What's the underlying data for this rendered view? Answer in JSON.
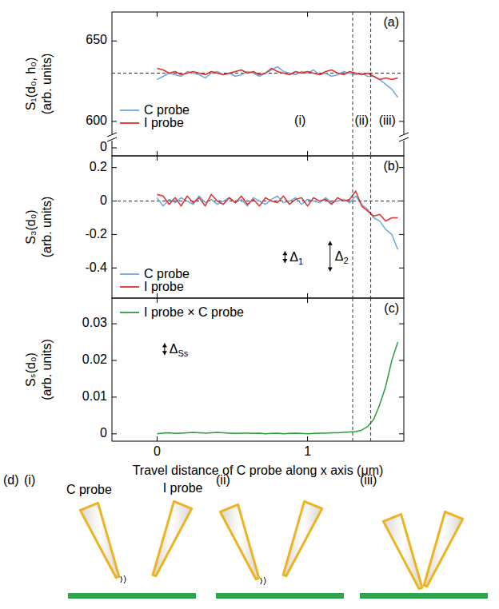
{
  "chart_data": [
    {
      "type": "line",
      "panel_label": "(a)",
      "ylabel": [
        "S₁(d₀, h₀)",
        "(arb. units)"
      ],
      "x": [
        0,
        0.04,
        0.08,
        0.12,
        0.16,
        0.2,
        0.24,
        0.28,
        0.32,
        0.36,
        0.4,
        0.44,
        0.48,
        0.52,
        0.56,
        0.6,
        0.64,
        0.68,
        0.72,
        0.76,
        0.8,
        0.84,
        0.88,
        0.92,
        0.96,
        1,
        1.04,
        1.08,
        1.12,
        1.16,
        1.2,
        1.24,
        1.28,
        1.32,
        1.36,
        1.4,
        1.44,
        1.48,
        1.52,
        1.56,
        1.6
      ],
      "xlim": [
        -0.3,
        1.64
      ],
      "xticks": [
        0,
        1
      ],
      "ylim": [
        592,
        668
      ],
      "yticks": [
        600,
        650
      ],
      "ybreak_ticks": [
        0
      ],
      "tick_labels": "y",
      "reference_y": 630,
      "region_bounds": [
        1.3,
        1.42
      ],
      "regions": [
        {
          "label": "(i)",
          "x": 0.95
        },
        {
          "label": "(ii)",
          "x": 1.36
        },
        {
          "label": "(iii)",
          "x": 1.53
        }
      ],
      "legend": "lower left",
      "series": [
        {
          "name": "C probe",
          "color": "#6fa8dc",
          "values": [
            626,
            628,
            630,
            629,
            628,
            631,
            630,
            629,
            627,
            630,
            631,
            629,
            630,
            628,
            629,
            631,
            630,
            628,
            630,
            632,
            634,
            631,
            630,
            629,
            631,
            630,
            632,
            629,
            630,
            628,
            629,
            631,
            630,
            629,
            630,
            628,
            628,
            626,
            623,
            620,
            615
          ]
        },
        {
          "name": "I probe",
          "color": "#e0302a",
          "values": [
            633,
            632,
            630,
            631,
            629,
            630,
            631,
            630,
            629,
            631,
            630,
            629,
            630,
            631,
            632,
            630,
            631,
            629,
            630,
            633,
            631,
            630,
            629,
            631,
            630,
            631,
            630,
            629,
            631,
            632,
            630,
            629,
            631,
            630,
            629,
            630,
            628,
            626,
            627,
            626,
            627
          ]
        }
      ]
    },
    {
      "type": "line",
      "panel_label": "(b)",
      "ylabel": [
        "S₃(d₀)",
        "(arb. units)"
      ],
      "x": [
        0,
        0.04,
        0.08,
        0.12,
        0.16,
        0.2,
        0.24,
        0.28,
        0.32,
        0.36,
        0.4,
        0.44,
        0.48,
        0.52,
        0.56,
        0.6,
        0.64,
        0.68,
        0.72,
        0.76,
        0.8,
        0.84,
        0.88,
        0.92,
        0.96,
        1,
        1.04,
        1.08,
        1.12,
        1.16,
        1.2,
        1.24,
        1.28,
        1.32,
        1.36,
        1.4,
        1.44,
        1.48,
        1.52,
        1.56,
        1.6
      ],
      "xlim": [
        -0.3,
        1.64
      ],
      "xticks": [
        0,
        1
      ],
      "ylim": [
        -0.58,
        0.27
      ],
      "yticks": [
        0.2,
        0,
        -0.2,
        -0.4
      ],
      "tick_labels": "y",
      "reference_y": 0,
      "region_bounds": [
        1.3,
        1.42
      ],
      "annotations": [
        {
          "label": "Δ",
          "subscript": "1",
          "x": 0.85,
          "y": [
            -0.3,
            -0.37
          ]
        },
        {
          "label": "Δ",
          "subscript": "2",
          "x": 1.15,
          "y": [
            -0.24,
            -0.42
          ]
        }
      ],
      "legend": "lower left",
      "series": [
        {
          "name": "C probe",
          "color": "#6fa8dc",
          "values": [
            0.02,
            -0.03,
            0.01,
            -0.01,
            0.02,
            0,
            -0.02,
            0.03,
            -0.01,
            0.01,
            -0.02,
            0,
            0.02,
            -0.01,
            0.01,
            -0.03,
            0.02,
            0,
            -0.02,
            0.01,
            0.03,
            -0.01,
            0,
            0.02,
            -0.02,
            0.01,
            0,
            -0.01,
            0.02,
            -0.01,
            0,
            0.01,
            -0.01,
            0.03,
            -0.02,
            -0.05,
            -0.1,
            -0.12,
            -0.17,
            -0.2,
            -0.29
          ]
        },
        {
          "name": "I probe",
          "color": "#e0302a",
          "values": [
            0.04,
            0.03,
            -0.02,
            0.02,
            -0.03,
            0.03,
            -0.01,
            0.02,
            -0.03,
            0.04,
            0,
            -0.02,
            0.02,
            -0.01,
            0.03,
            -0.02,
            0.01,
            -0.03,
            0.02,
            0,
            -0.01,
            0.03,
            -0.02,
            0.01,
            0.02,
            -0.03,
            0.02,
            0,
            0.01,
            -0.02,
            0.02,
            0,
            0.01,
            0.06,
            -0.03,
            -0.06,
            -0.09,
            -0.08,
            -0.12,
            -0.1,
            -0.1
          ]
        }
      ]
    },
    {
      "type": "line",
      "panel_label": "(c)",
      "ylabel": [
        "Sₛ(d₀)",
        "(arb. units)"
      ],
      "xlabel": "Travel distance of C probe along x axis (μm)",
      "x": [
        0,
        0.04,
        0.08,
        0.12,
        0.16,
        0.2,
        0.24,
        0.28,
        0.32,
        0.36,
        0.4,
        0.44,
        0.48,
        0.52,
        0.56,
        0.6,
        0.64,
        0.68,
        0.72,
        0.76,
        0.8,
        0.84,
        0.88,
        0.92,
        0.96,
        1,
        1.04,
        1.08,
        1.12,
        1.16,
        1.2,
        1.24,
        1.28,
        1.32,
        1.36,
        1.4,
        1.44,
        1.48,
        1.52,
        1.56,
        1.6
      ],
      "xlim": [
        -0.3,
        1.64
      ],
      "xticks": [
        0,
        1
      ],
      "ylim": [
        -0.002,
        0.037
      ],
      "yticks": [
        0,
        0.01,
        0.02,
        0.03
      ],
      "region_bounds": [
        1.3,
        1.42
      ],
      "annotations": [
        {
          "label": "Δ",
          "subscript": "Ss",
          "x": 0.05,
          "y": [
            0.0215,
            0.0247
          ]
        }
      ],
      "legend": "upper left",
      "series": [
        {
          "name": "I probe × C probe",
          "color": "#2a9d3a",
          "values": [
            0,
            0.0002,
            0.0003,
            0.0001,
            0.0002,
            0.0003,
            0.0004,
            0.0003,
            0.0002,
            0.0003,
            0.0004,
            0.0003,
            0.0002,
            0.0001,
            0.0002,
            0.0002,
            0.0001,
            0.0002,
            0,
            0.0001,
            0.0002,
            0,
            0.0001,
            0.0002,
            0.0001,
            0,
            0.0001,
            0.0002,
            0.0002,
            0.0003,
            0.0003,
            0.0004,
            0.0005,
            0.0006,
            0.001,
            0.002,
            0.004,
            0.008,
            0.013,
            0.02,
            0.025
          ]
        }
      ]
    }
  ],
  "diagram": {
    "label": "(d)",
    "scenes": [
      {
        "label": "(i)",
        "probes": [
          "C probe",
          "I probe"
        ]
      },
      {
        "label": "(ii)"
      },
      {
        "label": "(iii)"
      }
    ]
  }
}
